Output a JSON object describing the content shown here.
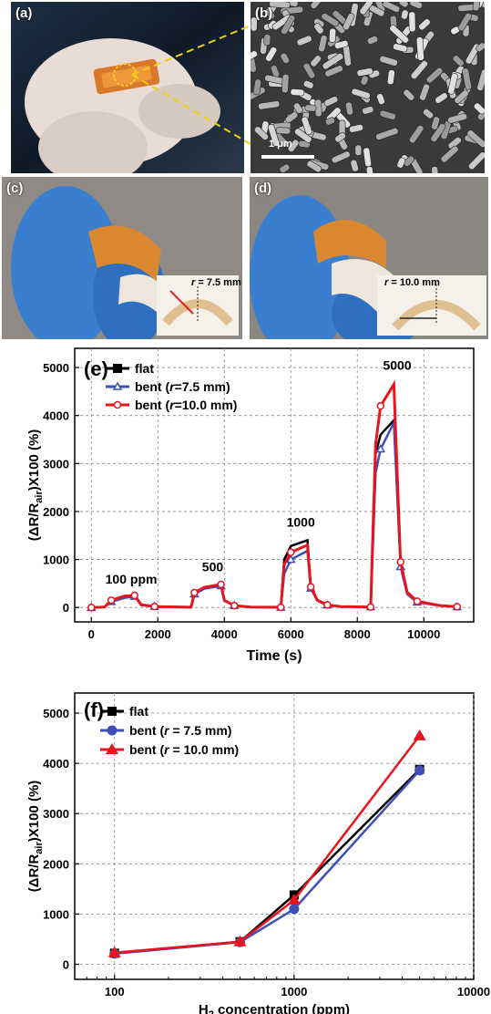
{
  "panels": {
    "a": {
      "label": "(a)"
    },
    "b": {
      "label": "(b)",
      "scale_bar": "1 μm"
    },
    "c": {
      "label": "(c)",
      "inset": "r = 7.5 mm",
      "r_var": "r",
      "r_value": "= 7.5 mm"
    },
    "d": {
      "label": "(d)",
      "inset": "r = 10.0 mm",
      "r_var": "r",
      "r_value": "= 10.0 mm"
    }
  },
  "colors": {
    "flat": "#000000",
    "bent75": "#3f4fb8",
    "bent10": "#e8141e"
  },
  "chart_data": [
    {
      "type": "line",
      "panel_label": "(e)",
      "xlabel": "Time (s)",
      "ylabel": "(ΔR/R_air)X100 (%)",
      "xlim": [
        -500,
        11500
      ],
      "ylim": [
        -300,
        5400
      ],
      "xticks": [
        0,
        2000,
        4000,
        6000,
        8000,
        10000
      ],
      "yticks": [
        0,
        1000,
        2000,
        3000,
        4000,
        5000
      ],
      "grid": true,
      "legend_position": "top-left",
      "annotations": [
        {
          "text": "100 ppm",
          "x": 1200,
          "y": 500
        },
        {
          "text": "500",
          "x": 3650,
          "y": 750
        },
        {
          "text": "1000",
          "x": 6300,
          "y": 1690
        },
        {
          "text": "5000",
          "x": 9200,
          "y": 4950
        }
      ],
      "series": [
        {
          "name": "flat",
          "x": [
            0,
            400,
            600,
            1000,
            1300,
            1500,
            1900,
            3000,
            3100,
            3400,
            3900,
            4000,
            4300,
            4800,
            5700,
            5800,
            6000,
            6500,
            6600,
            6800,
            7100,
            7500,
            8400,
            8550,
            8700,
            9100,
            9300,
            9500,
            9800,
            10500,
            11000
          ],
          "y": [
            0,
            10,
            140,
            230,
            260,
            60,
            20,
            5,
            300,
            400,
            470,
            150,
            40,
            10,
            5,
            1000,
            1280,
            1400,
            450,
            150,
            60,
            20,
            10,
            3200,
            3600,
            3900,
            900,
            300,
            120,
            40,
            15
          ]
        },
        {
          "name": "bent (r=7.5 mm)",
          "x": [
            0,
            400,
            600,
            1000,
            1300,
            1500,
            1900,
            3000,
            3100,
            3400,
            3900,
            4000,
            4300,
            4800,
            5700,
            5800,
            6000,
            6500,
            6600,
            6800,
            7100,
            7500,
            8400,
            8550,
            8700,
            9100,
            9300,
            9500,
            9800,
            10500,
            11000
          ],
          "y": [
            0,
            10,
            120,
            200,
            230,
            50,
            20,
            5,
            280,
            390,
            450,
            140,
            40,
            10,
            5,
            700,
            1000,
            1180,
            400,
            140,
            50,
            20,
            10,
            2800,
            3300,
            3850,
            850,
            280,
            110,
            35,
            10
          ]
        },
        {
          "name": "bent (r=10.0 mm)",
          "x": [
            0,
            400,
            600,
            1000,
            1300,
            1500,
            1900,
            3000,
            3100,
            3400,
            3900,
            4000,
            4300,
            4800,
            5700,
            5800,
            6000,
            6500,
            6600,
            6800,
            7100,
            7500,
            8400,
            8550,
            8700,
            9100,
            9300,
            9500,
            9800,
            10500,
            11000
          ],
          "y": [
            0,
            10,
            150,
            240,
            250,
            60,
            20,
            5,
            310,
            420,
            480,
            150,
            40,
            10,
            5,
            900,
            1150,
            1300,
            430,
            150,
            55,
            20,
            10,
            3400,
            4200,
            4650,
            950,
            320,
            130,
            40,
            15
          ]
        }
      ]
    },
    {
      "type": "line",
      "panel_label": "(f)",
      "xlabel": "H2 concentration (ppm)",
      "ylabel": "(ΔR/R_air)X100 (%)",
      "xscale": "log",
      "xlim": [
        60,
        10000
      ],
      "ylim": [
        -300,
        5400
      ],
      "xticks": [
        100,
        1000,
        10000
      ],
      "yticks": [
        0,
        1000,
        2000,
        3000,
        4000,
        5000
      ],
      "grid": true,
      "legend_position": "top-left",
      "series": [
        {
          "name": "flat",
          "marker": "square",
          "x": [
            100,
            500,
            1000,
            5000
          ],
          "y": [
            220,
            450,
            1380,
            3880
          ]
        },
        {
          "name": "bent (r = 7.5 mm)",
          "marker": "circle",
          "x": [
            100,
            500,
            1000,
            5000
          ],
          "y": [
            210,
            440,
            1100,
            3860
          ]
        },
        {
          "name": "bent (r = 10.0 mm)",
          "marker": "triangle",
          "x": [
            100,
            500,
            1000,
            5000
          ],
          "y": [
            230,
            450,
            1280,
            4550
          ]
        }
      ]
    }
  ]
}
